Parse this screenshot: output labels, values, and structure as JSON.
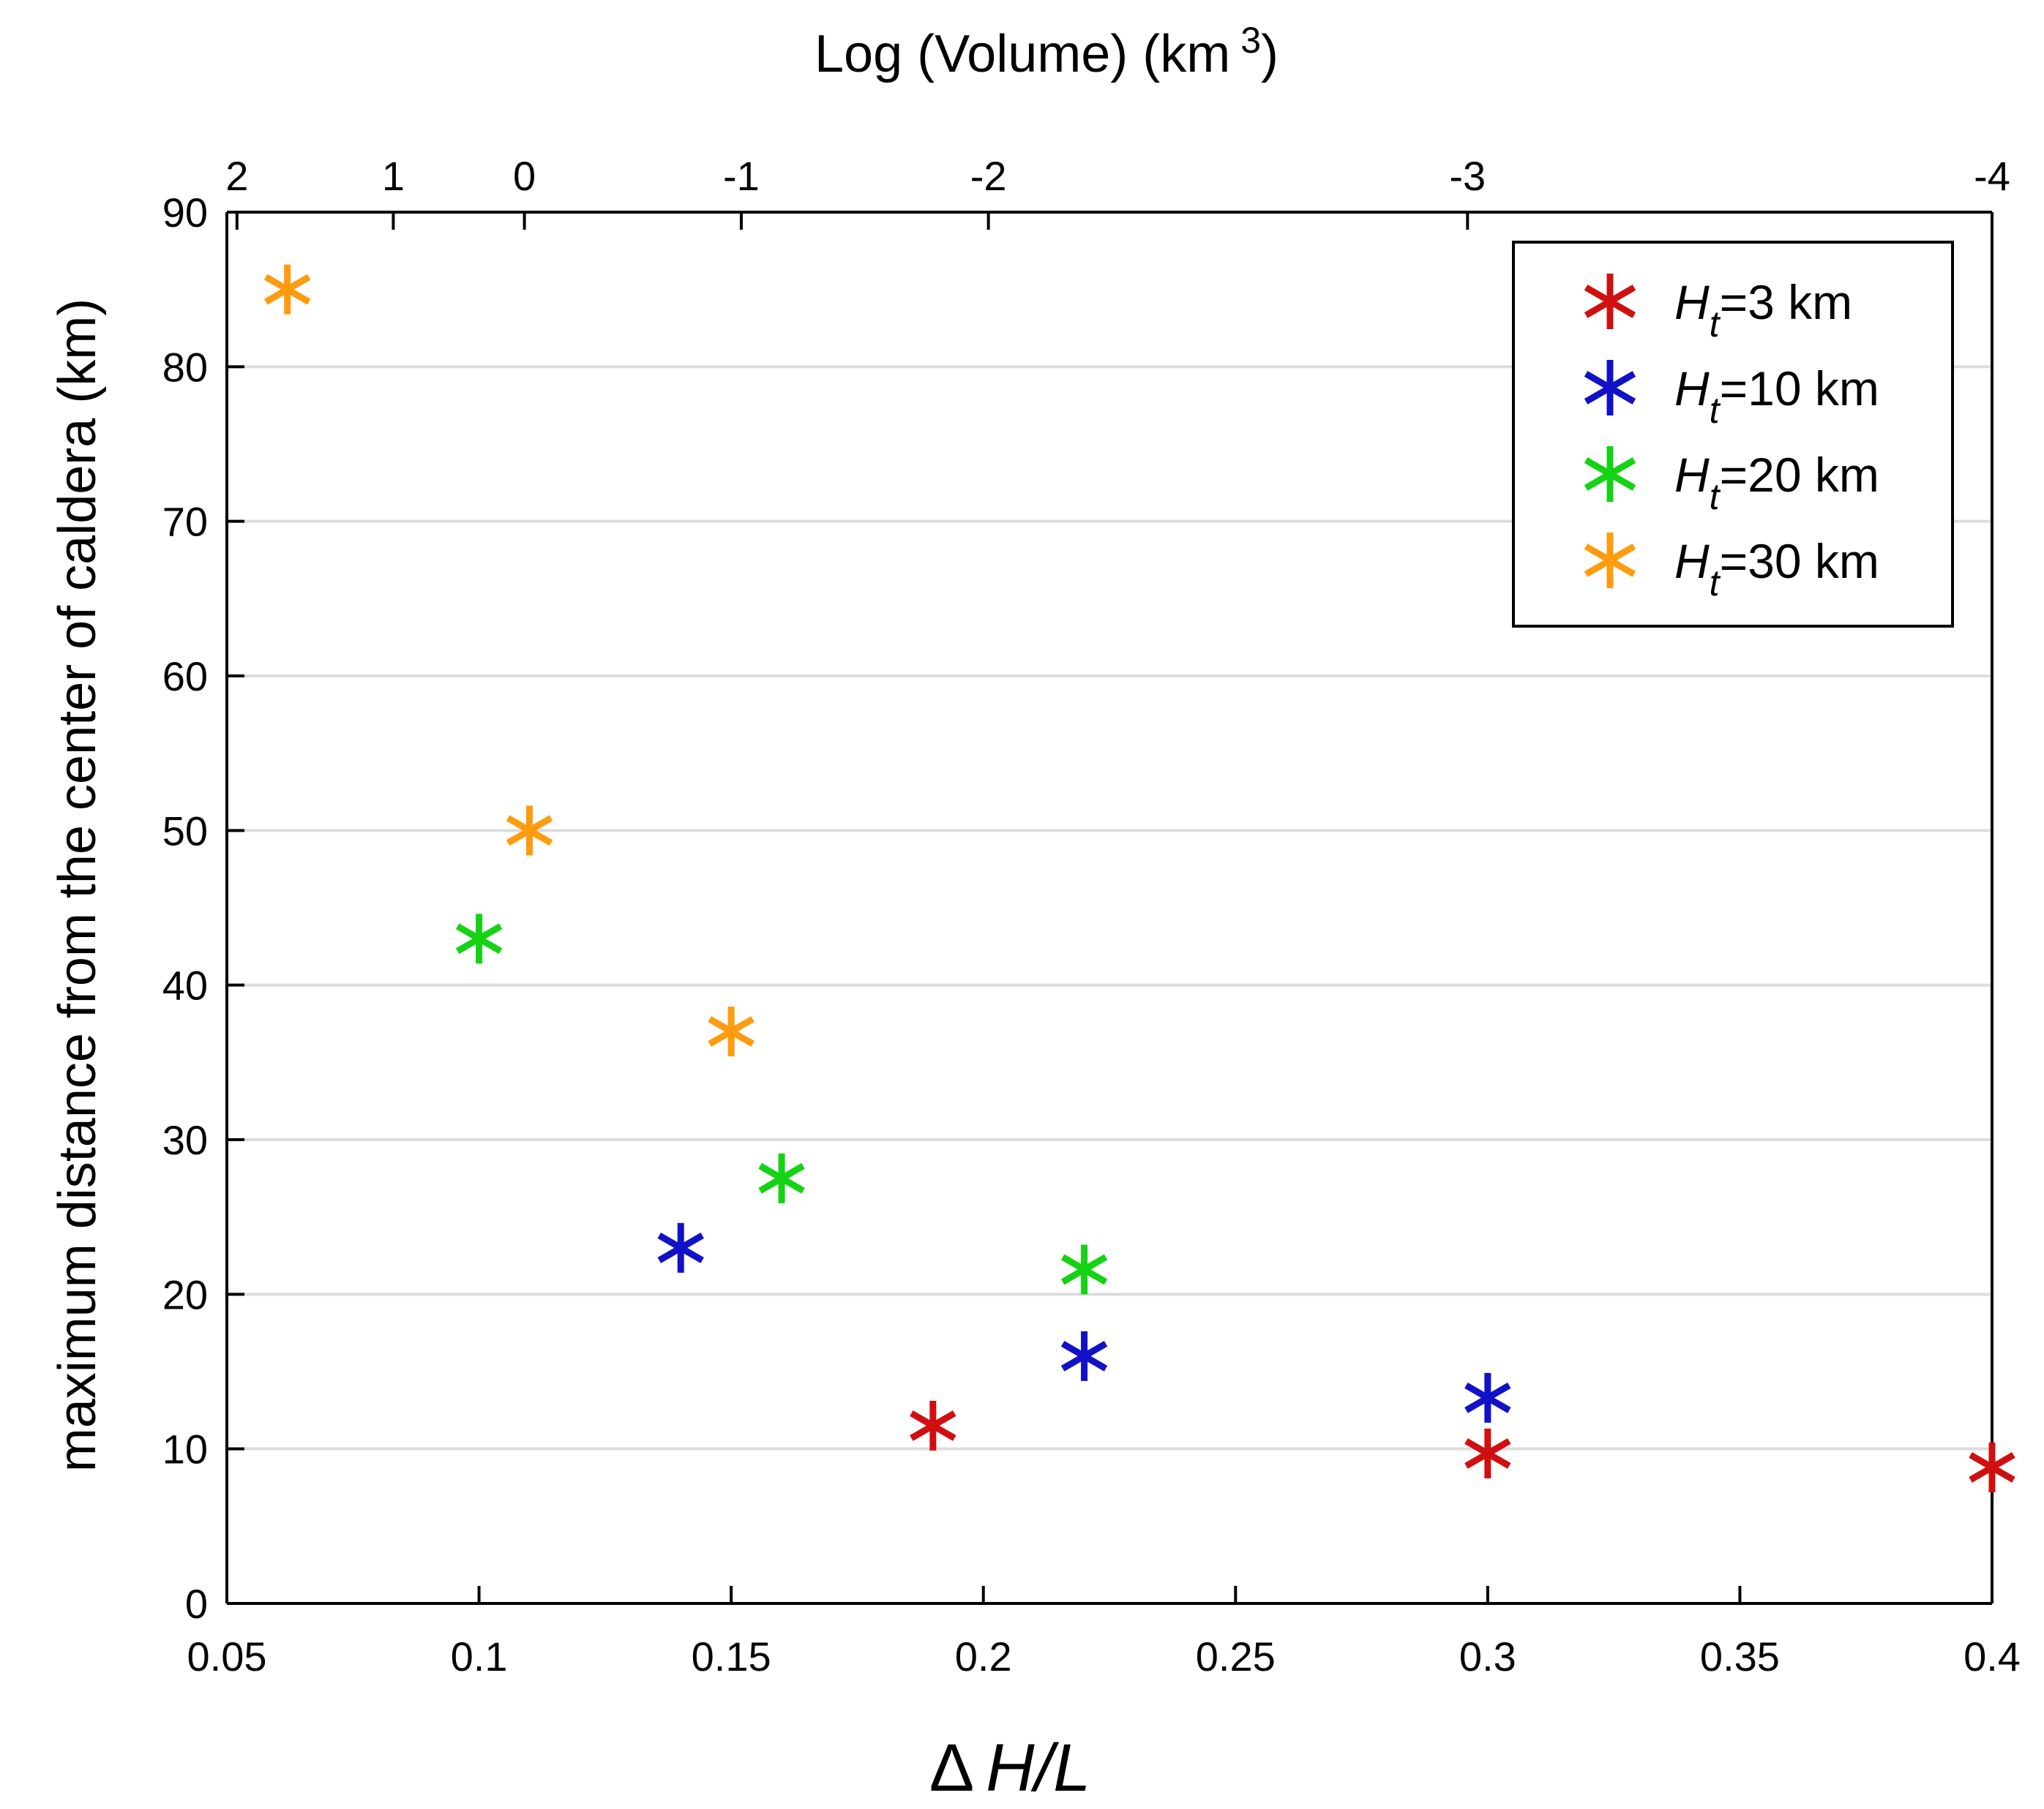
{
  "chart_data": {
    "type": "scatter",
    "marker": "asterisk",
    "xlabel": "Δ H/L",
    "xlabel_parts": {
      "delta": "Δ",
      "var": "H/L"
    },
    "ylabel": "maximum distance from the center of caldera (km)",
    "top_axis": {
      "label_prefix": "Log (Volume) (km",
      "label_sup": "3",
      "label_suffix": ")",
      "ticks": [
        {
          "label": "2",
          "x": 0.052
        },
        {
          "label": "1",
          "x": 0.083
        },
        {
          "label": "0",
          "x": 0.109
        },
        {
          "label": "-1",
          "x": 0.152
        },
        {
          "label": "-2",
          "x": 0.201
        },
        {
          "label": "-3",
          "x": 0.296
        },
        {
          "label": "-4",
          "x": 0.4
        }
      ]
    },
    "xlim": [
      0.05,
      0.4
    ],
    "ylim": [
      0,
      90
    ],
    "xticks": [
      0.05,
      0.1,
      0.15,
      0.2,
      0.25,
      0.3,
      0.35,
      0.4
    ],
    "xtick_labels": [
      "0.05",
      "0.1",
      "0.15",
      "0.2",
      "0.25",
      "0.3",
      "0.35",
      "0.4"
    ],
    "yticks": [
      0,
      10,
      20,
      30,
      40,
      50,
      60,
      70,
      80,
      90
    ],
    "ytick_labels": [
      "0",
      "10",
      "20",
      "30",
      "40",
      "50",
      "60",
      "70",
      "80",
      "90"
    ],
    "grid": "horizontal",
    "legend_position": "top-right",
    "series": [
      {
        "name": "Ht=3 km",
        "legend": {
          "var": "H",
          "sub": "t",
          "rest": "=3 km"
        },
        "color": "#d01010",
        "points": [
          [
            0.19,
            11.5
          ],
          [
            0.3,
            9.7
          ],
          [
            0.4,
            8.8
          ]
        ]
      },
      {
        "name": "Ht=10 km",
        "legend": {
          "var": "H",
          "sub": "t",
          "rest": "=10 km"
        },
        "color": "#1111c8",
        "points": [
          [
            0.14,
            23.0
          ],
          [
            0.22,
            16.0
          ],
          [
            0.3,
            13.3
          ]
        ]
      },
      {
        "name": "Ht=20 km",
        "legend": {
          "var": "H",
          "sub": "t",
          "rest": "=20 km"
        },
        "color": "#14d214",
        "points": [
          [
            0.1,
            43.0
          ],
          [
            0.16,
            27.5
          ],
          [
            0.22,
            21.6
          ]
        ]
      },
      {
        "name": "Ht=30 km",
        "legend": {
          "var": "H",
          "sub": "t",
          "rest": "=30 km"
        },
        "color": "#ff9b0f",
        "points": [
          [
            0.062,
            85.0
          ],
          [
            0.11,
            50.0
          ],
          [
            0.15,
            37.0
          ]
        ]
      }
    ]
  }
}
